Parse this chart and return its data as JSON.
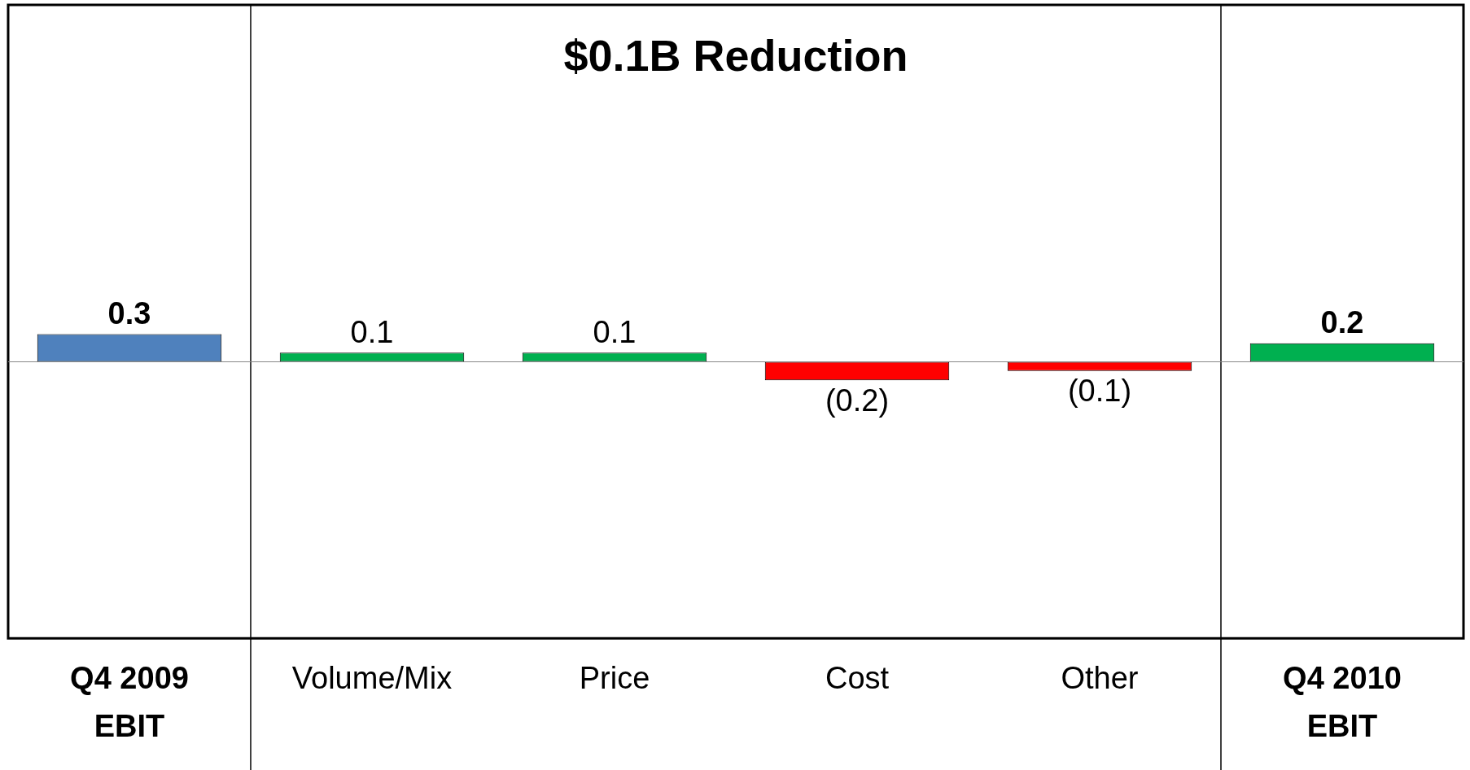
{
  "chart_data": {
    "type": "bar",
    "title": "$0.1B Reduction",
    "categories": [
      "Q4 2009\nEBIT",
      "Volume/Mix",
      "Price",
      "Cost",
      "Other",
      "Q4 2010\nEBIT"
    ],
    "values": [
      0.3,
      0.1,
      0.1,
      -0.2,
      -0.1,
      0.2
    ],
    "colors": [
      "#4f81bd",
      "#00b050",
      "#00b050",
      "#ff0000",
      "#ff0000",
      "#00b050"
    ],
    "value_labels": [
      "0.3",
      "0.1",
      "0.1",
      "(0.2)",
      "(0.1)",
      "0.2"
    ],
    "grid": false,
    "legend": false
  }
}
